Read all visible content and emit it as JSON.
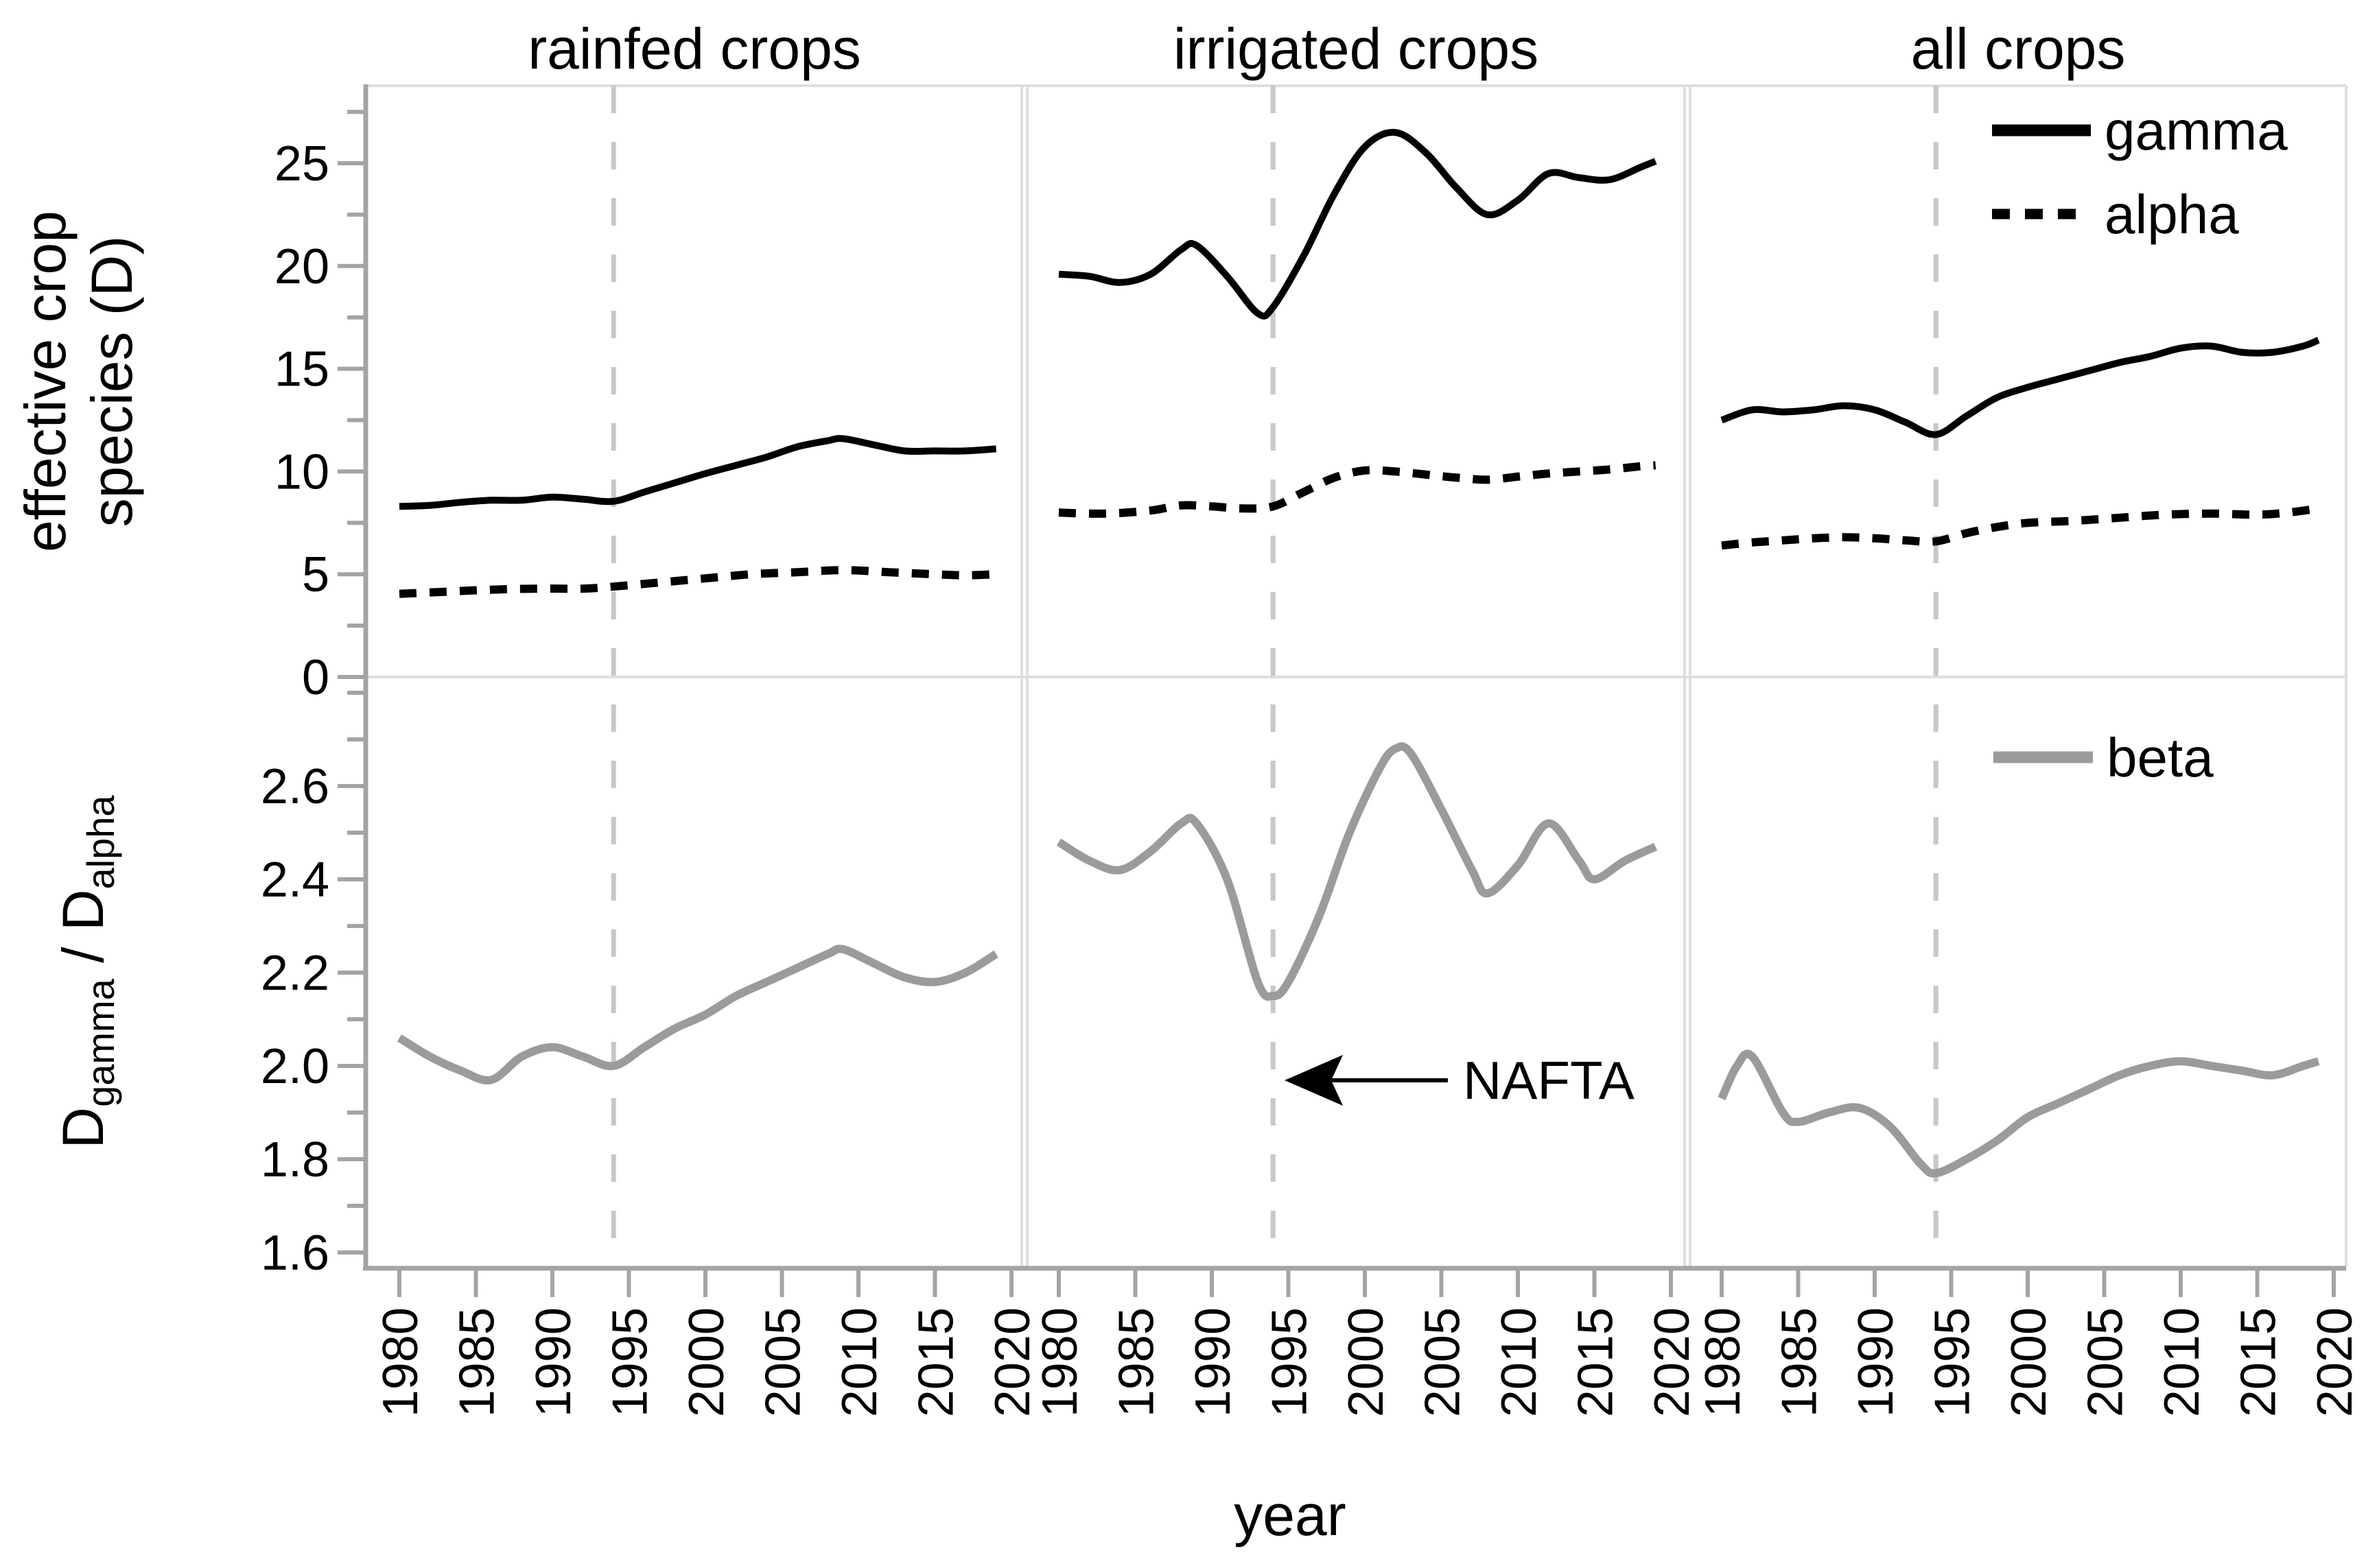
{
  "chart_data": {
    "type": "line",
    "layout": "faceted small-multiples, 2 rows x 3 columns, shared axes",
    "columns": [
      "rainfed crops",
      "irrigated crops",
      "all crops"
    ],
    "xlabel": "year",
    "x_ticks": [
      1980,
      1985,
      1990,
      1995,
      2000,
      2005,
      2010,
      2015,
      2020
    ],
    "x_range": [
      1977.9,
      2020.7
    ],
    "grid": "off",
    "legend_position": "top-right panel (gamma, alpha) and bottom-right panel (beta)",
    "rows": [
      {
        "ylabel": "effective crop species (D)",
        "ylabel_lines": [
          "effective crop",
          "species (D)"
        ],
        "ticks": [
          0,
          5,
          10,
          15,
          20,
          25
        ],
        "minor_ticks": [
          2.5,
          7.5,
          12.5,
          17.5,
          22.5,
          27.5
        ],
        "ylim": [
          0,
          28.7
        ],
        "tick_format": "integer"
      },
      {
        "ylabel": "Dgamma / Dalpha",
        "ylabel_parts": {
          "base1": "D",
          "sub1": "gamma",
          "mid": " / D",
          "sub2": "alpha"
        },
        "ticks": [
          2.6,
          2.4,
          2.2,
          2.0,
          1.8,
          1.6
        ],
        "minor_ticks": [
          2.8,
          2.7,
          2.5,
          2.3,
          2.1,
          1.9,
          1.7
        ],
        "ylim": [
          1.57,
          2.83
        ],
        "tick_format": "one-decimal"
      }
    ],
    "legend": {
      "gamma": "gamma",
      "alpha": "alpha",
      "beta": "beta"
    },
    "annotation": {
      "label": "NAFTA",
      "year": 1994,
      "note": "vertical dashed line at 1994 in every panel; left-pointing arrow to the line in bottom middle panel"
    },
    "colors": {
      "gamma": "#000000",
      "alpha": "#000000",
      "beta": "#9b9b9b",
      "event_line": "#c7c7c7",
      "axis": "#a4a4a4",
      "panel_border": "#dedede",
      "text": "#000000",
      "background": "#ffffff"
    },
    "panels": [
      {
        "row": 0,
        "col": 0,
        "facet": "rainfed crops",
        "series": [
          {
            "name": "gamma",
            "style": "solid-black",
            "points": [
              [
                1980,
                8.3
              ],
              [
                1982,
                8.35
              ],
              [
                1984,
                8.5
              ],
              [
                1986,
                8.6
              ],
              [
                1988,
                8.6
              ],
              [
                1990,
                8.75
              ],
              [
                1992,
                8.65
              ],
              [
                1994,
                8.55
              ],
              [
                1996,
                9.0
              ],
              [
                1998,
                9.45
              ],
              [
                2000,
                9.9
              ],
              [
                2002,
                10.3
              ],
              [
                2004,
                10.7
              ],
              [
                2006,
                11.2
              ],
              [
                2008,
                11.5
              ],
              [
                2009,
                11.6
              ],
              [
                2011,
                11.3
              ],
              [
                2013,
                11.0
              ],
              [
                2015,
                11.0
              ],
              [
                2017,
                11.0
              ],
              [
                2019,
                11.1
              ]
            ]
          },
          {
            "name": "alpha",
            "style": "dashed-black",
            "points": [
              [
                1980,
                4.05
              ],
              [
                1983,
                4.15
              ],
              [
                1986,
                4.25
              ],
              [
                1989,
                4.3
              ],
              [
                1992,
                4.3
              ],
              [
                1994,
                4.4
              ],
              [
                1997,
                4.6
              ],
              [
                2000,
                4.8
              ],
              [
                2003,
                5.0
              ],
              [
                2006,
                5.1
              ],
              [
                2009,
                5.2
              ],
              [
                2012,
                5.1
              ],
              [
                2015,
                5.0
              ],
              [
                2017,
                4.95
              ],
              [
                2019,
                5.0
              ]
            ]
          }
        ]
      },
      {
        "row": 0,
        "col": 1,
        "facet": "irrigated crops",
        "series": [
          {
            "name": "gamma",
            "style": "solid-black",
            "points": [
              [
                1980,
                19.6
              ],
              [
                1982,
                19.5
              ],
              [
                1984,
                19.2
              ],
              [
                1986,
                19.6
              ],
              [
                1988,
                20.8
              ],
              [
                1989,
                21.0
              ],
              [
                1991,
                19.5
              ],
              [
                1993,
                17.7
              ],
              [
                1994,
                18.0
              ],
              [
                1996,
                20.5
              ],
              [
                1998,
                23.5
              ],
              [
                2000,
                25.8
              ],
              [
                2002,
                26.5
              ],
              [
                2004,
                25.5
              ],
              [
                2006,
                23.8
              ],
              [
                2008,
                22.5
              ],
              [
                2010,
                23.2
              ],
              [
                2012,
                24.5
              ],
              [
                2014,
                24.3
              ],
              [
                2016,
                24.2
              ],
              [
                2018,
                24.8
              ],
              [
                2019,
                25.1
              ]
            ]
          },
          {
            "name": "alpha",
            "style": "dashed-black",
            "points": [
              [
                1980,
                8.0
              ],
              [
                1983,
                7.95
              ],
              [
                1986,
                8.1
              ],
              [
                1988,
                8.35
              ],
              [
                1990,
                8.3
              ],
              [
                1992,
                8.2
              ],
              [
                1994,
                8.3
              ],
              [
                1996,
                9.0
              ],
              [
                1998,
                9.7
              ],
              [
                2000,
                10.05
              ],
              [
                2002,
                10.0
              ],
              [
                2004,
                9.85
              ],
              [
                2006,
                9.7
              ],
              [
                2008,
                9.6
              ],
              [
                2010,
                9.75
              ],
              [
                2012,
                9.9
              ],
              [
                2014,
                10.0
              ],
              [
                2016,
                10.1
              ],
              [
                2018,
                10.25
              ],
              [
                2019,
                10.3
              ]
            ]
          }
        ]
      },
      {
        "row": 0,
        "col": 2,
        "facet": "all crops",
        "series": [
          {
            "name": "gamma",
            "style": "solid-black",
            "points": [
              [
                1980,
                12.5
              ],
              [
                1982,
                13.0
              ],
              [
                1984,
                12.9
              ],
              [
                1986,
                13.0
              ],
              [
                1988,
                13.2
              ],
              [
                1990,
                13.0
              ],
              [
                1992,
                12.4
              ],
              [
                1994,
                11.8
              ],
              [
                1996,
                12.7
              ],
              [
                1998,
                13.6
              ],
              [
                2000,
                14.1
              ],
              [
                2002,
                14.5
              ],
              [
                2004,
                14.9
              ],
              [
                2006,
                15.3
              ],
              [
                2008,
                15.6
              ],
              [
                2010,
                16.0
              ],
              [
                2012,
                16.1
              ],
              [
                2014,
                15.8
              ],
              [
                2016,
                15.8
              ],
              [
                2018,
                16.1
              ],
              [
                2019,
                16.4
              ]
            ]
          },
          {
            "name": "alpha",
            "style": "dashed-black",
            "points": [
              [
                1980,
                6.4
              ],
              [
                1982,
                6.55
              ],
              [
                1984,
                6.65
              ],
              [
                1986,
                6.75
              ],
              [
                1988,
                6.8
              ],
              [
                1990,
                6.75
              ],
              [
                1992,
                6.65
              ],
              [
                1994,
                6.6
              ],
              [
                1996,
                7.0
              ],
              [
                1998,
                7.3
              ],
              [
                2000,
                7.5
              ],
              [
                2003,
                7.6
              ],
              [
                2006,
                7.75
              ],
              [
                2009,
                7.9
              ],
              [
                2012,
                7.95
              ],
              [
                2015,
                7.9
              ],
              [
                2017,
                8.0
              ],
              [
                2019,
                8.2
              ]
            ]
          }
        ]
      },
      {
        "row": 1,
        "col": 0,
        "facet": "rainfed crops",
        "series": [
          {
            "name": "beta",
            "style": "solid-gray",
            "points": [
              [
                1980,
                2.06
              ],
              [
                1982,
                2.02
              ],
              [
                1984,
                1.99
              ],
              [
                1986,
                1.97
              ],
              [
                1988,
                2.02
              ],
              [
                1990,
                2.04
              ],
              [
                1992,
                2.02
              ],
              [
                1994,
                2.0
              ],
              [
                1996,
                2.04
              ],
              [
                1998,
                2.08
              ],
              [
                2000,
                2.11
              ],
              [
                2002,
                2.15
              ],
              [
                2004,
                2.18
              ],
              [
                2006,
                2.21
              ],
              [
                2008,
                2.24
              ],
              [
                2009,
                2.25
              ],
              [
                2011,
                2.22
              ],
              [
                2013,
                2.19
              ],
              [
                2015,
                2.18
              ],
              [
                2017,
                2.2
              ],
              [
                2019,
                2.24
              ]
            ]
          }
        ]
      },
      {
        "row": 1,
        "col": 1,
        "facet": "irrigated crops",
        "series": [
          {
            "name": "beta",
            "style": "solid-gray",
            "points": [
              [
                1980,
                2.48
              ],
              [
                1982,
                2.44
              ],
              [
                1984,
                2.42
              ],
              [
                1986,
                2.46
              ],
              [
                1988,
                2.52
              ],
              [
                1989,
                2.52
              ],
              [
                1991,
                2.4
              ],
              [
                1993,
                2.18
              ],
              [
                1994,
                2.15
              ],
              [
                1995,
                2.18
              ],
              [
                1997,
                2.32
              ],
              [
                1999,
                2.5
              ],
              [
                2001,
                2.64
              ],
              [
                2002,
                2.68
              ],
              [
                2003,
                2.67
              ],
              [
                2005,
                2.55
              ],
              [
                2007,
                2.42
              ],
              [
                2008,
                2.37
              ],
              [
                2010,
                2.43
              ],
              [
                2012,
                2.52
              ],
              [
                2014,
                2.44
              ],
              [
                2015,
                2.4
              ],
              [
                2017,
                2.44
              ],
              [
                2019,
                2.47
              ]
            ]
          }
        ]
      },
      {
        "row": 1,
        "col": 2,
        "facet": "all crops",
        "series": [
          {
            "name": "beta",
            "style": "solid-gray",
            "points": [
              [
                1980,
                1.93
              ],
              [
                1981,
                2.0
              ],
              [
                1982,
                2.02
              ],
              [
                1984,
                1.9
              ],
              [
                1985,
                1.88
              ],
              [
                1987,
                1.9
              ],
              [
                1989,
                1.91
              ],
              [
                1991,
                1.87
              ],
              [
                1993,
                1.79
              ],
              [
                1994,
                1.77
              ],
              [
                1996,
                1.8
              ],
              [
                1998,
                1.84
              ],
              [
                2000,
                1.89
              ],
              [
                2002,
                1.92
              ],
              [
                2004,
                1.95
              ],
              [
                2006,
                1.98
              ],
              [
                2008,
                2.0
              ],
              [
                2010,
                2.01
              ],
              [
                2012,
                2.0
              ],
              [
                2014,
                1.99
              ],
              [
                2016,
                1.98
              ],
              [
                2018,
                2.0
              ],
              [
                2019,
                2.01
              ]
            ]
          }
        ]
      }
    ]
  }
}
